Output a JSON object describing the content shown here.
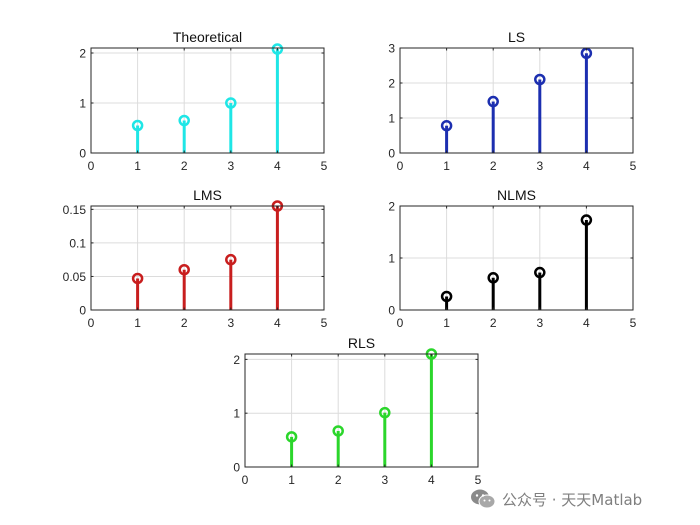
{
  "chart_data": [
    {
      "type": "stem",
      "title": "Theoretical",
      "color": "#1fe6e6",
      "x": [
        1,
        2,
        3,
        4
      ],
      "values": [
        0.55,
        0.65,
        1.0,
        2.08
      ],
      "xlim": [
        0,
        5
      ],
      "ylim": [
        0,
        2.1
      ],
      "xticks": [
        0,
        1,
        2,
        3,
        4,
        5
      ],
      "yticks": [
        0,
        1,
        2
      ],
      "yticklabels": [
        "0",
        "1",
        "2"
      ],
      "grid": true
    },
    {
      "type": "stem",
      "title": "LS",
      "color": "#1c2fb0",
      "x": [
        1,
        2,
        3,
        4
      ],
      "values": [
        0.78,
        1.47,
        2.1,
        2.85
      ],
      "xlim": [
        0,
        5
      ],
      "ylim": [
        0,
        3
      ],
      "xticks": [
        0,
        1,
        2,
        3,
        4,
        5
      ],
      "yticks": [
        0,
        1,
        2,
        3
      ],
      "yticklabels": [
        "0",
        "1",
        "2",
        "3"
      ],
      "grid": true
    },
    {
      "type": "stem",
      "title": "LMS",
      "color": "#c81e1e",
      "x": [
        1,
        2,
        3,
        4
      ],
      "values": [
        0.047,
        0.06,
        0.075,
        0.155
      ],
      "xlim": [
        0,
        5
      ],
      "ylim": [
        0,
        0.155
      ],
      "xticks": [
        0,
        1,
        2,
        3,
        4,
        5
      ],
      "yticks": [
        0,
        0.05,
        0.1,
        0.15
      ],
      "yticklabels": [
        "0",
        "0.05",
        "0.1",
        "0.15"
      ],
      "grid": true
    },
    {
      "type": "stem",
      "title": "NLMS",
      "color": "#000000",
      "x": [
        1,
        2,
        3,
        4
      ],
      "values": [
        0.26,
        0.62,
        0.72,
        1.73
      ],
      "xlim": [
        0,
        5
      ],
      "ylim": [
        0,
        2
      ],
      "xticks": [
        0,
        1,
        2,
        3,
        4,
        5
      ],
      "yticks": [
        0,
        1,
        2
      ],
      "yticklabels": [
        "0",
        "1",
        "2"
      ],
      "grid": true
    },
    {
      "type": "stem",
      "title": "RLS",
      "color": "#2bd62b",
      "x": [
        1,
        2,
        3,
        4
      ],
      "values": [
        0.56,
        0.67,
        1.01,
        2.1
      ],
      "xlim": [
        0,
        5
      ],
      "ylim": [
        0,
        2.1
      ],
      "xticks": [
        0,
        1,
        2,
        3,
        4,
        5
      ],
      "yticks": [
        0,
        1,
        2
      ],
      "yticklabels": [
        "0",
        "1",
        "2"
      ],
      "grid": true
    }
  ],
  "watermark": {
    "text": "公众号 · 天天Matlab",
    "icon": "wechat-icon"
  }
}
